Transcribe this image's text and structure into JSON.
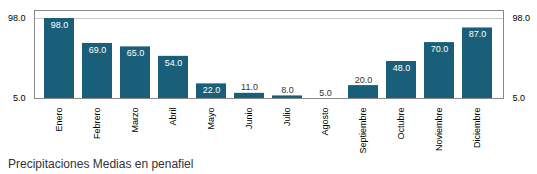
{
  "chart_data": {
    "type": "bar",
    "title": "Precipitaciones Medias en penafiel",
    "categories": [
      "Enero",
      "Febrero",
      "Marzo",
      "Abril",
      "Mayo",
      "Junio",
      "Julio",
      "Agosto",
      "Septiembre",
      "Octubre",
      "Noviembre",
      "Diciembre"
    ],
    "values": [
      98.0,
      69.0,
      65.0,
      54.0,
      22.0,
      11.0,
      8.0,
      5.0,
      20.0,
      48.0,
      70.0,
      87.0
    ],
    "value_labels": [
      "98.0",
      "69.0",
      "65.0",
      "54.0",
      "22.0",
      "11.0",
      "8.0",
      "5.0",
      "20.0",
      "48.0",
      "70.0",
      "87.0"
    ],
    "color": "#1a5f7a",
    "ylim": [
      5.0,
      107.3
    ],
    "yticks": [
      {
        "value": 5.0,
        "label": "5.0"
      },
      {
        "value": 98.0,
        "label": "98.0"
      }
    ],
    "grid": true,
    "data_labels": true
  }
}
